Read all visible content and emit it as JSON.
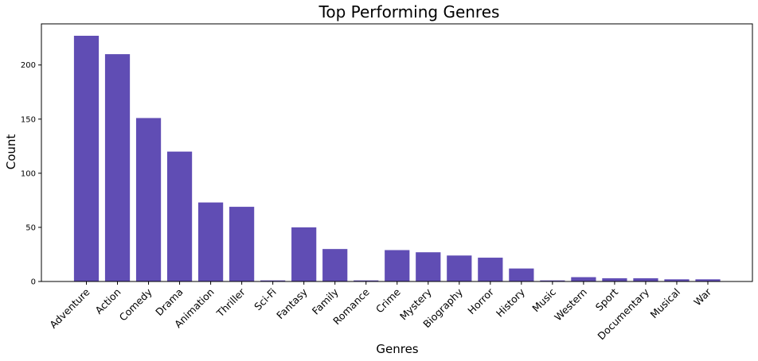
{
  "chart_data": {
    "type": "bar",
    "title": "Top Performing Genres",
    "xlabel": "Genres",
    "ylabel": "Count",
    "categories": [
      "Adventure",
      "Action",
      "Comedy",
      "Drama",
      "Animation",
      "Thriller",
      "Sci-Fi",
      "Fantasy",
      "Family",
      "Romance",
      "Crime",
      "Mystery",
      "Biography",
      "Horror",
      "History",
      "Music",
      "Western",
      "Sport",
      "Documentary",
      "Musical",
      "War"
    ],
    "values": [
      227,
      210,
      151,
      120,
      73,
      69,
      1,
      50,
      30,
      1,
      29,
      27,
      24,
      22,
      12,
      1,
      4,
      3,
      3,
      2,
      2
    ],
    "ylim": [
      0,
      238
    ],
    "yticks": [
      0,
      50,
      100,
      150,
      200
    ],
    "x_tick_rotation": 45,
    "bar_color": "#604db4",
    "grid": false,
    "legend": "none"
  }
}
